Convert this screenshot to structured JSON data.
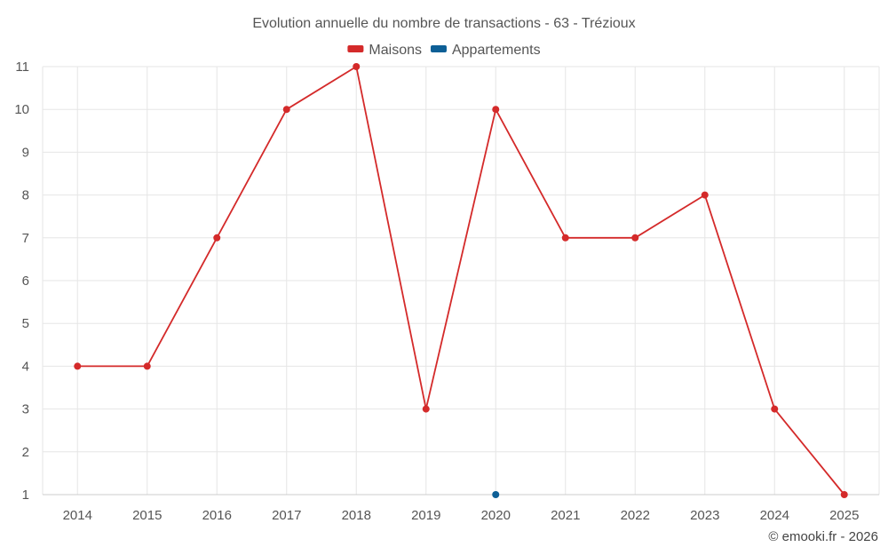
{
  "chart_data": {
    "type": "line",
    "title": "Evolution annuelle du nombre de transactions - 63 - Trézioux",
    "categories": [
      "2014",
      "2015",
      "2016",
      "2017",
      "2018",
      "2019",
      "2020",
      "2021",
      "2022",
      "2023",
      "2024",
      "2025"
    ],
    "series": [
      {
        "name": "Maisons",
        "color": "#d42a2a",
        "values": [
          4,
          4,
          7,
          10,
          11,
          3,
          10,
          7,
          7,
          8,
          3,
          1
        ]
      },
      {
        "name": "Appartements",
        "color": "#0d5f96",
        "values": [
          null,
          null,
          null,
          null,
          null,
          null,
          1,
          null,
          null,
          null,
          null,
          null
        ]
      }
    ],
    "ylim": [
      1,
      11
    ],
    "yticks": [
      1,
      2,
      3,
      4,
      5,
      6,
      7,
      8,
      9,
      10,
      11
    ],
    "xlabel": "",
    "ylabel": "",
    "legend": "top-center",
    "grid": true
  },
  "credit": "© emooki.fr - 2026"
}
